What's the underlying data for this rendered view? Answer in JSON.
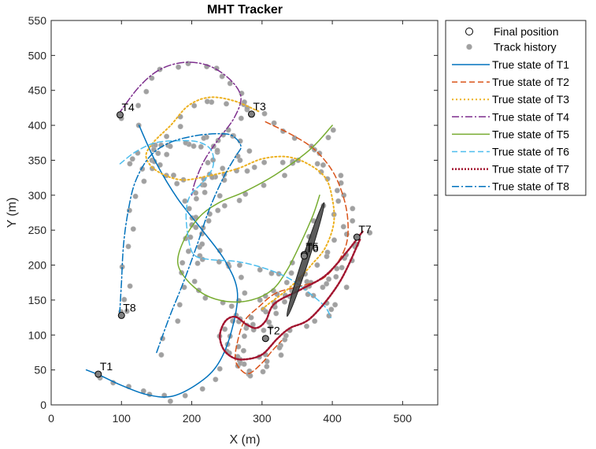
{
  "chart_data": {
    "type": "line",
    "title": "MHT Tracker",
    "xlabel": "X (m)",
    "ylabel": "Y (m)",
    "xlim": [
      0,
      550
    ],
    "ylim": [
      0,
      550
    ],
    "xticks": [
      0,
      100,
      200,
      300,
      400,
      500
    ],
    "yticks": [
      0,
      50,
      100,
      150,
      200,
      250,
      300,
      350,
      400,
      450,
      500,
      550
    ],
    "grid": false,
    "legend_position": "outside-right",
    "legend": {
      "final_position": "Final position",
      "track_history": "Track history"
    },
    "colors": {
      "history_marker": "#a0a0a0",
      "final_marker_edge": "#000000",
      "final_marker_fill": "#808080",
      "ellipse": "#404040"
    },
    "series": [
      {
        "name": "True state of T1",
        "label": "T1",
        "color": "#0072bd",
        "dash": "",
        "width": 1.5,
        "points": [
          [
            125,
            400
          ],
          [
            150,
            345
          ],
          [
            180,
            295
          ],
          [
            215,
            250
          ],
          [
            248,
            205
          ],
          [
            265,
            160
          ],
          [
            255,
            100
          ],
          [
            235,
            55
          ],
          [
            205,
            28
          ],
          [
            170,
            12
          ],
          [
            135,
            15
          ],
          [
            100,
            28
          ],
          [
            70,
            42
          ],
          [
            50,
            50
          ]
        ]
      },
      {
        "name": "True state of T2",
        "label": "T2",
        "color": "#d95319",
        "dash": "7,4",
        "width": 1.5,
        "points": [
          [
            305,
            405
          ],
          [
            345,
            385
          ],
          [
            375,
            365
          ],
          [
            400,
            335
          ],
          [
            415,
            300
          ],
          [
            422,
            265
          ],
          [
            420,
            230
          ],
          [
            405,
            200
          ],
          [
            385,
            180
          ],
          [
            355,
            170
          ],
          [
            320,
            160
          ],
          [
            295,
            140
          ],
          [
            275,
            120
          ],
          [
            265,
            90
          ],
          [
            262,
            65
          ],
          [
            270,
            50
          ],
          [
            282,
            45
          ],
          [
            300,
            60
          ],
          [
            315,
            78
          ],
          [
            328,
            92
          ]
        ]
      },
      {
        "name": "True state of T3",
        "label": "T3",
        "color": "#edb120",
        "dash": "2,3",
        "width": 2,
        "points": [
          [
            295,
            420
          ],
          [
            260,
            435
          ],
          [
            225,
            440
          ],
          [
            195,
            428
          ],
          [
            170,
            400
          ],
          [
            145,
            375
          ],
          [
            135,
            355
          ],
          [
            150,
            335
          ],
          [
            185,
            322
          ],
          [
            225,
            328
          ],
          [
            265,
            338
          ],
          [
            300,
            352
          ],
          [
            335,
            355
          ],
          [
            365,
            345
          ],
          [
            390,
            325
          ],
          [
            400,
            295
          ],
          [
            402,
            260
          ],
          [
            390,
            225
          ],
          [
            370,
            200
          ],
          [
            350,
            178
          ],
          [
            330,
            160
          ],
          [
            310,
            145
          ],
          [
            298,
            135
          ]
        ]
      },
      {
        "name": "True state of T4",
        "label": "T4",
        "color": "#7e2f8e",
        "dash": "9,3,2,3",
        "width": 1.5,
        "points": [
          [
            95,
            415
          ],
          [
            125,
            455
          ],
          [
            155,
            480
          ],
          [
            190,
            490
          ],
          [
            225,
            485
          ],
          [
            255,
            465
          ],
          [
            270,
            440
          ],
          [
            260,
            410
          ],
          [
            238,
            380
          ],
          [
            218,
            350
          ],
          [
            205,
            320
          ],
          [
            200,
            300
          ]
        ]
      },
      {
        "name": "True state of T5",
        "label": "T5",
        "color": "#77ac30",
        "dash": "",
        "width": 1.5,
        "points": [
          [
            400,
            400
          ],
          [
            368,
            365
          ],
          [
            320,
            330
          ],
          [
            275,
            305
          ],
          [
            240,
            290
          ],
          [
            212,
            270
          ],
          [
            190,
            238
          ],
          [
            180,
            205
          ],
          [
            192,
            180
          ],
          [
            218,
            158
          ],
          [
            250,
            148
          ],
          [
            285,
            150
          ],
          [
            315,
            165
          ],
          [
            335,
            192
          ],
          [
            352,
            225
          ],
          [
            372,
            270
          ],
          [
            382,
            300
          ]
        ]
      },
      {
        "name": "True state of T6",
        "label": "T6",
        "color": "#4dbeee",
        "dash": "7,4",
        "width": 1.5,
        "points": [
          [
            98,
            345
          ],
          [
            120,
            362
          ],
          [
            148,
            375
          ],
          [
            182,
            378
          ],
          [
            210,
            376
          ],
          [
            228,
            364
          ],
          [
            230,
            340
          ],
          [
            215,
            318
          ],
          [
            198,
            300
          ],
          [
            192,
            275
          ],
          [
            195,
            240
          ],
          [
            203,
            215
          ],
          [
            225,
            208
          ],
          [
            265,
            205
          ],
          [
            305,
            195
          ],
          [
            340,
            180
          ],
          [
            370,
            158
          ],
          [
            390,
            140
          ],
          [
            398,
            125
          ]
        ]
      },
      {
        "name": "True state of T7",
        "label": "T7",
        "color": "#a2142f",
        "dash": "2,2",
        "width": 2.5,
        "points": [
          [
            443,
            248
          ],
          [
            420,
            218
          ],
          [
            390,
            185
          ],
          [
            355,
            165
          ],
          [
            318,
            145
          ],
          [
            305,
            120
          ],
          [
            292,
            110
          ],
          [
            278,
            115
          ],
          [
            262,
            126
          ],
          [
            248,
            120
          ],
          [
            240,
            100
          ],
          [
            245,
            80
          ],
          [
            258,
            68
          ],
          [
            275,
            65
          ],
          [
            300,
            72
          ],
          [
            322,
            95
          ],
          [
            340,
            110
          ],
          [
            370,
            125
          ],
          [
            410,
            175
          ],
          [
            440,
            238
          ]
        ]
      },
      {
        "name": "True state of T8",
        "label": "T8",
        "color": "#0072bd",
        "dash": "9,3,2,3",
        "width": 1.5,
        "points": [
          [
            150,
            75
          ],
          [
            168,
            125
          ],
          [
            188,
            175
          ],
          [
            208,
            230
          ],
          [
            225,
            280
          ],
          [
            245,
            325
          ],
          [
            262,
            355
          ],
          [
            270,
            370
          ],
          [
            258,
            385
          ],
          [
            238,
            388
          ],
          [
            205,
            385
          ],
          [
            168,
            375
          ],
          [
            140,
            355
          ],
          [
            120,
            320
          ],
          [
            110,
            280
          ],
          [
            103,
            230
          ],
          [
            100,
            175
          ],
          [
            98,
            140
          ],
          [
            97,
            128
          ]
        ]
      }
    ],
    "final_positions": [
      {
        "label": "T1",
        "x": 67,
        "y": 44
      },
      {
        "label": "T2",
        "x": 305,
        "y": 95
      },
      {
        "label": "T3",
        "x": 285,
        "y": 416
      },
      {
        "label": "T4",
        "x": 98,
        "y": 415
      },
      {
        "label": "T5",
        "x": 360,
        "y": 215
      },
      {
        "label": "T6",
        "x": 360,
        "y": 213
      },
      {
        "label": "T7",
        "x": 435,
        "y": 240
      },
      {
        "label": "T8",
        "x": 100,
        "y": 128
      }
    ],
    "uncertainty_ellipse": {
      "cx": 362,
      "cy": 208,
      "rx": 85,
      "ry": 4,
      "angle_deg": -72
    }
  }
}
